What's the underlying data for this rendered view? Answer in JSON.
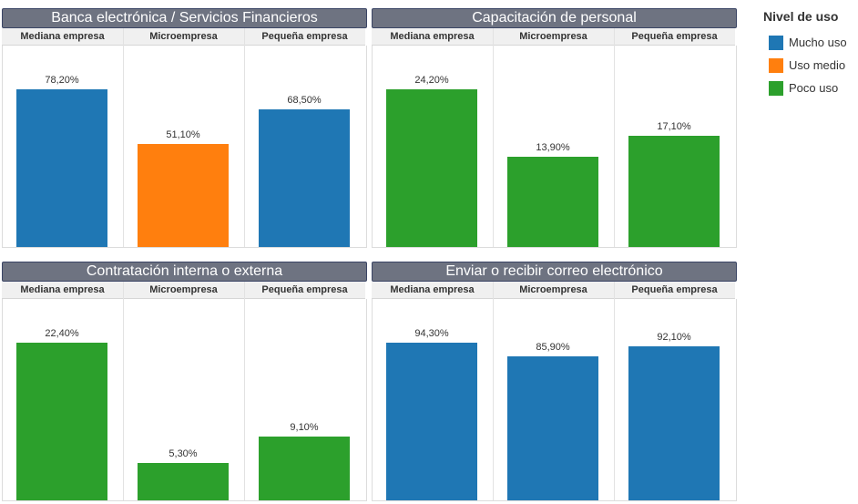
{
  "legend": {
    "title": "Nivel de uso",
    "items": [
      {
        "label": "Mucho uso",
        "color": "#1f77b4",
        "key": "mucho"
      },
      {
        "label": "Uso medio",
        "color": "#ff7f0e",
        "key": "medio"
      },
      {
        "label": "Poco uso",
        "color": "#2ca02c",
        "key": "poco"
      }
    ]
  },
  "chart_data": [
    {
      "type": "bar",
      "title": "Banca electrónica / Servicios Financieros",
      "categories": [
        "Mediana empresa",
        "Microempresa",
        "Pequeña empresa"
      ],
      "values": [
        78.2,
        51.1,
        68.5
      ],
      "labels": [
        "78,20%",
        "51,10%",
        "68,50%"
      ],
      "levels": [
        "mucho",
        "medio",
        "mucho"
      ],
      "ylim": [
        0,
        100
      ]
    },
    {
      "type": "bar",
      "title": "Capacitación de personal",
      "categories": [
        "Mediana empresa",
        "Microempresa",
        "Pequeña empresa"
      ],
      "values": [
        24.2,
        13.9,
        17.1
      ],
      "labels": [
        "24,20%",
        "13,90%",
        "17,10%"
      ],
      "levels": [
        "poco",
        "poco",
        "poco"
      ],
      "ylim": [
        0,
        30.9
      ]
    },
    {
      "type": "bar",
      "title": "Contratación interna o externa",
      "categories": [
        "Mediana empresa",
        "Microempresa",
        "Pequeña empresa"
      ],
      "values": [
        22.4,
        5.3,
        9.1
      ],
      "labels": [
        "22,40%",
        "5,30%",
        "9,10%"
      ],
      "levels": [
        "poco",
        "poco",
        "poco"
      ],
      "ylim": [
        0,
        28.6
      ]
    },
    {
      "type": "bar",
      "title": "Enviar o recibir correo electrónico",
      "categories": [
        "Mediana empresa",
        "Microempresa",
        "Pequeña empresa"
      ],
      "values": [
        94.3,
        85.9,
        92.1
      ],
      "labels": [
        "94,30%",
        "85,90%",
        "92,10%"
      ],
      "levels": [
        "mucho",
        "mucho",
        "mucho"
      ],
      "ylim": [
        0,
        120.4
      ]
    }
  ]
}
